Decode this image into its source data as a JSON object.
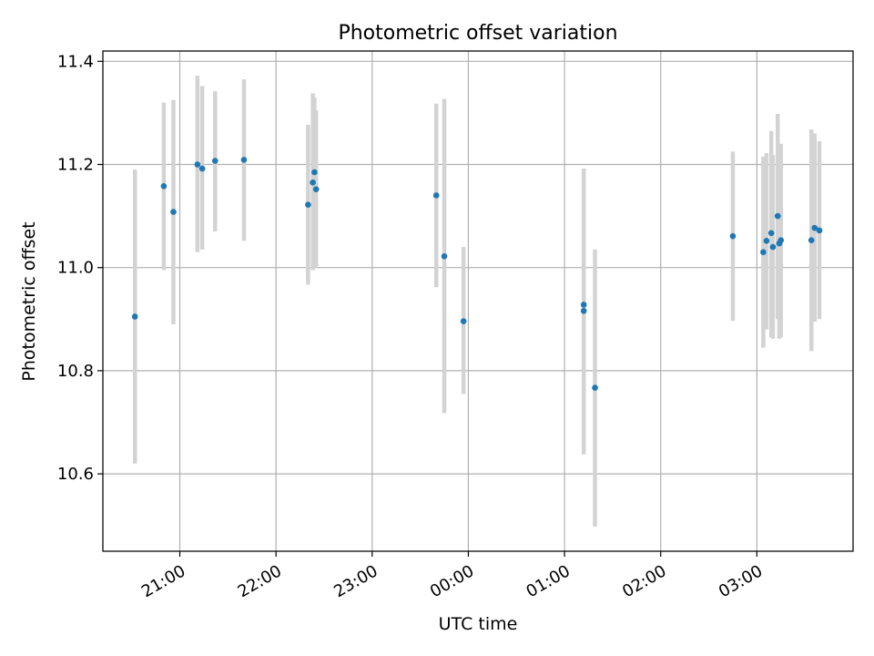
{
  "chart_data": {
    "type": "scatter",
    "title": "Photometric offset variation",
    "xlabel": "UTC time",
    "ylabel": "Photometric offset",
    "x_range": [
      "20:12",
      "04:00"
    ],
    "ylim": [
      10.45,
      11.42
    ],
    "x_ticks": [
      "21:00",
      "22:00",
      "23:00",
      "00:00",
      "01:00",
      "02:00",
      "03:00"
    ],
    "y_ticks": [
      10.6,
      10.8,
      11.0,
      11.2,
      11.4
    ],
    "y_tick_labels": [
      "10.6",
      "10.8",
      "11.0",
      "11.2",
      "11.4"
    ],
    "grid": true,
    "point_color": "#1f77b4",
    "error_bar_color": "#d3d3d3",
    "series": [
      {
        "points": [
          {
            "t": "20:32",
            "y": 10.905,
            "lo": 10.62,
            "hi": 11.19
          },
          {
            "t": "20:50",
            "y": 11.158,
            "lo": 10.995,
            "hi": 11.32
          },
          {
            "t": "20:56",
            "y": 11.108,
            "lo": 10.89,
            "hi": 11.325
          },
          {
            "t": "21:11",
            "y": 11.2,
            "lo": 11.03,
            "hi": 11.372
          },
          {
            "t": "21:14",
            "y": 11.192,
            "lo": 11.035,
            "hi": 11.352
          },
          {
            "t": "21:22",
            "y": 11.207,
            "lo": 11.07,
            "hi": 11.342
          },
          {
            "t": "21:40",
            "y": 11.209,
            "lo": 11.052,
            "hi": 11.365
          },
          {
            "t": "22:20",
            "y": 11.122,
            "lo": 10.967,
            "hi": 11.277
          },
          {
            "t": "22:23",
            "y": 11.165,
            "lo": 10.995,
            "hi": 11.338
          },
          {
            "t": "22:24",
            "y": 11.185,
            "lo": 11.04,
            "hi": 11.33
          },
          {
            "t": "22:25",
            "y": 11.152,
            "lo": 11.0,
            "hi": 11.305
          },
          {
            "t": "23:40",
            "y": 11.14,
            "lo": 10.962,
            "hi": 11.318
          },
          {
            "t": "23:45",
            "y": 11.022,
            "lo": 10.718,
            "hi": 11.327
          },
          {
            "t": "23:57",
            "y": 10.896,
            "lo": 10.755,
            "hi": 11.04
          },
          {
            "t": "01:12",
            "y": 10.916,
            "lo": 10.638,
            "hi": 11.192
          },
          {
            "t": "01:12",
            "y": 10.928,
            "lo": 10.675,
            "hi": 11.18
          },
          {
            "t": "01:19",
            "y": 10.767,
            "lo": 10.498,
            "hi": 11.035
          },
          {
            "t": "02:45",
            "y": 11.061,
            "lo": 10.897,
            "hi": 11.225
          },
          {
            "t": "03:04",
            "y": 11.03,
            "lo": 10.845,
            "hi": 11.215
          },
          {
            "t": "03:06",
            "y": 11.052,
            "lo": 10.88,
            "hi": 11.222
          },
          {
            "t": "03:09",
            "y": 11.067,
            "lo": 10.865,
            "hi": 11.265
          },
          {
            "t": "03:10",
            "y": 11.04,
            "lo": 10.862,
            "hi": 11.218
          },
          {
            "t": "03:13",
            "y": 11.1,
            "lo": 10.9,
            "hi": 11.298
          },
          {
            "t": "03:14",
            "y": 11.047,
            "lo": 10.862,
            "hi": 11.232
          },
          {
            "t": "03:15",
            "y": 11.053,
            "lo": 10.865,
            "hi": 11.24
          },
          {
            "t": "03:34",
            "y": 11.053,
            "lo": 10.838,
            "hi": 11.268
          },
          {
            "t": "03:36",
            "y": 11.077,
            "lo": 10.895,
            "hi": 11.26
          },
          {
            "t": "03:39",
            "y": 11.072,
            "lo": 10.9,
            "hi": 11.245
          }
        ]
      }
    ]
  }
}
